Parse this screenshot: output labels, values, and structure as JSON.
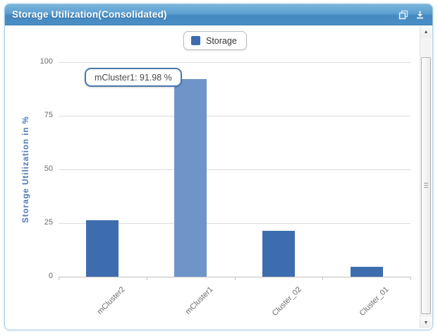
{
  "header": {
    "title": "Storage Utilization(Consolidated)",
    "icons": [
      "popout-icon",
      "download-icon"
    ]
  },
  "legend": {
    "label": "Storage"
  },
  "tooltip": {
    "text": "mCluster1: 91.98 %"
  },
  "chart_data": {
    "type": "bar",
    "title": "Storage Utilization(Consolidated)",
    "categories": [
      "mCluster2",
      "mCluster1",
      "Cluster_02",
      "Cluster_01"
    ],
    "series": [
      {
        "name": "Storage",
        "values": [
          26.4,
          91.98,
          21.3,
          4.7
        ]
      }
    ],
    "highlighted_index": 1,
    "highlighted_tooltip": {
      "category": "mCluster1",
      "value": 91.98,
      "unit": "%"
    },
    "xlabel": "",
    "ylabel": "Storage Utilization in %",
    "ylim": [
      0,
      100
    ],
    "yticks": [
      0,
      25,
      50,
      75,
      100
    ],
    "grid": true,
    "legend_position": "top-center",
    "colors": {
      "bar": "#3e6daf",
      "bar_highlight": "#6f95c8",
      "gridline": "#dcdcdc",
      "axis_text": "#6b6b6b",
      "y_title": "#4a7ab5",
      "titlebar": "#4588c0",
      "panel_border": "#a9cbe0"
    }
  },
  "scrollbar": {
    "icons": [
      "scroll-up-icon",
      "scroll-down-icon"
    ]
  }
}
